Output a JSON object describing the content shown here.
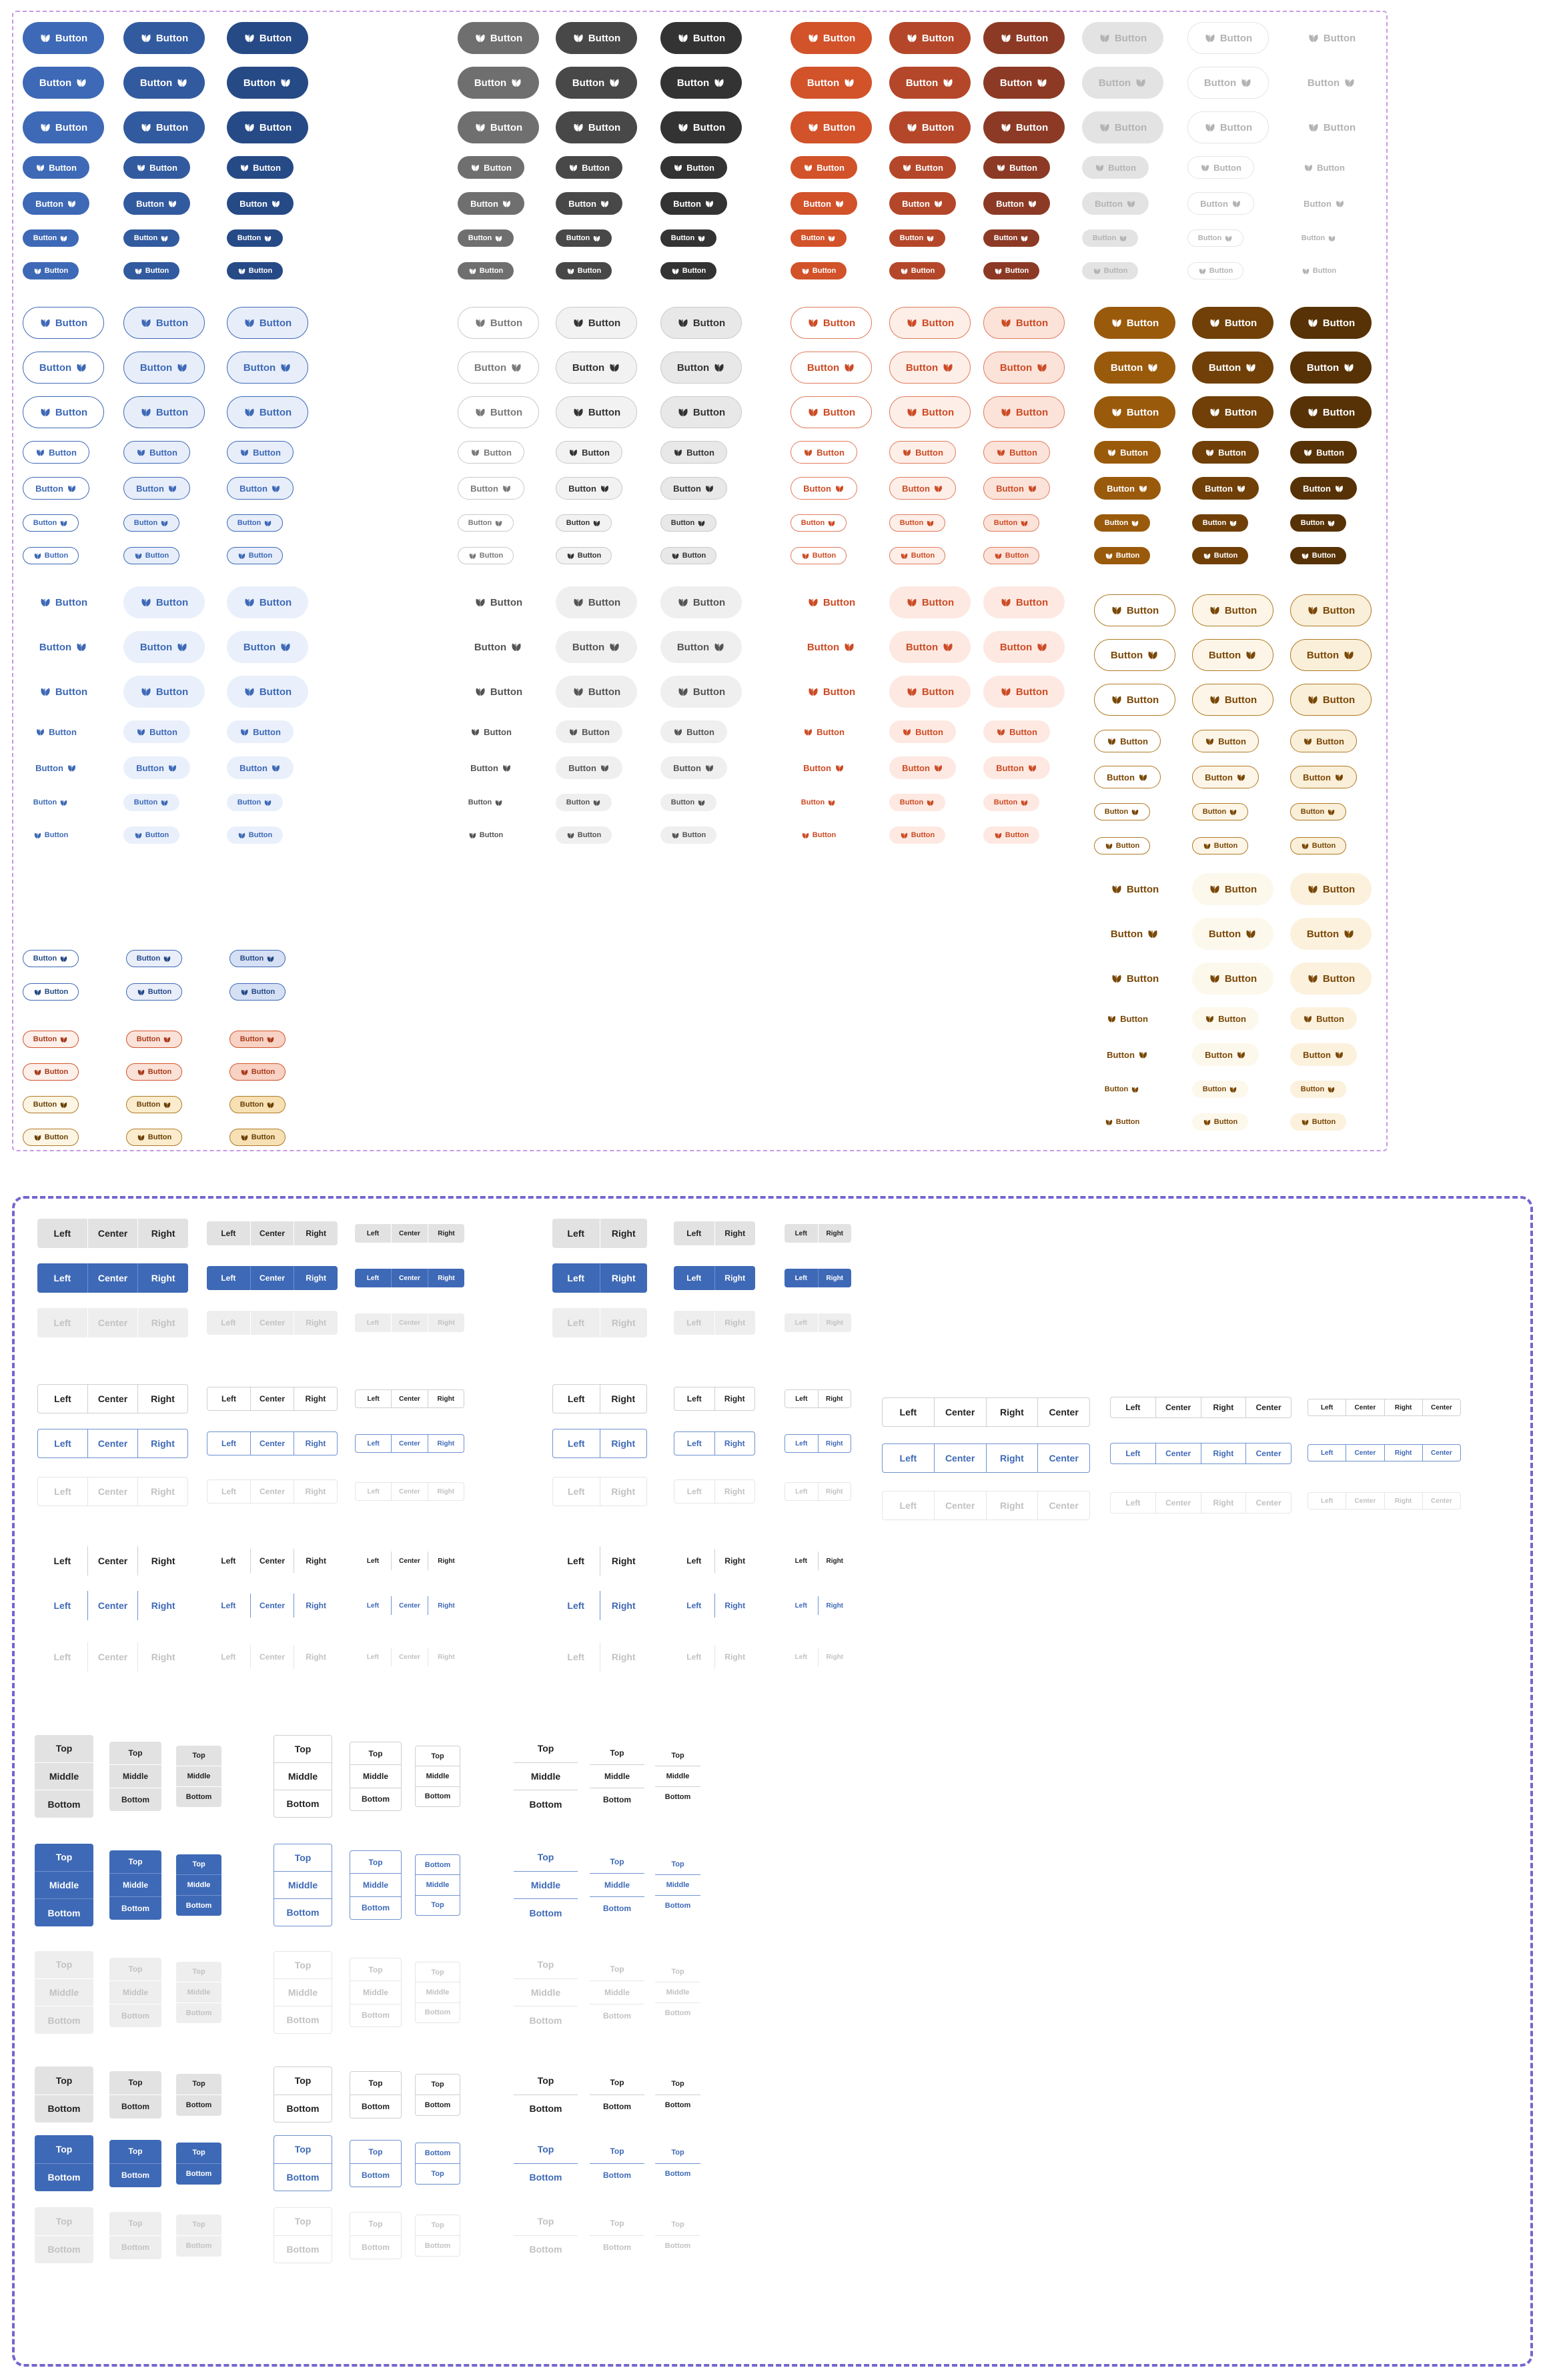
{
  "labels": {
    "button": "Button",
    "left": "Left",
    "center": "Center",
    "right": "Right",
    "top": "Top",
    "middle": "Middle",
    "bottom": "Bottom"
  },
  "icon": "two-leaves-icon",
  "palettes": {
    "blue": [
      "#3e69b6",
      "#325a9f",
      "#264a86"
    ],
    "gray": [
      "#6f6f6f",
      "#484848",
      "#333333"
    ],
    "red": [
      "#d2522a",
      "#b4472a",
      "#8c3a25"
    ],
    "brown": [
      "#9a5a0c",
      "#704008",
      "#573206"
    ],
    "disabled": "#e3e3e3",
    "disabled_text": "#b3b3b3",
    "group_gray": "#e2e2e2",
    "group_blue": "#3e69b6"
  }
}
